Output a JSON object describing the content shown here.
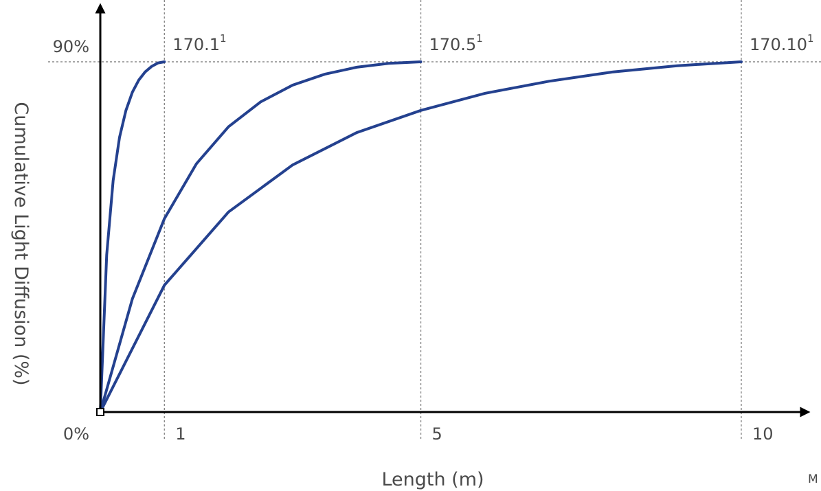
{
  "chart_data": {
    "type": "line",
    "xlabel": "Length (m)",
    "ylabel": "Cumulative Light Diffusion (%)",
    "corner_label": "M",
    "x_ticks": [
      {
        "value": 1,
        "label": "1"
      },
      {
        "value": 5,
        "label": "5"
      },
      {
        "value": 10,
        "label": "10"
      }
    ],
    "y_ticks": [
      {
        "value": 0,
        "label": "0%"
      },
      {
        "value": 90,
        "label": "90%"
      }
    ],
    "xlim": [
      0,
      11
    ],
    "ylim": [
      0,
      100
    ],
    "grid": "dotted guides at x = 1, 5, 10 and y = 90%",
    "line_color": "#24418f",
    "series": [
      {
        "label_text": "170.1",
        "label_sup": "1",
        "end_x": 1,
        "x": [
          0,
          0.1,
          0.2,
          0.3,
          0.4,
          0.5,
          0.6,
          0.7,
          0.8,
          0.9,
          1.0
        ],
        "y": [
          0,
          40.4,
          59.5,
          70.6,
          77.5,
          82.2,
          85.3,
          87.4,
          88.8,
          89.7,
          90
        ]
      },
      {
        "label_text": "170.5",
        "label_sup": "1",
        "end_x": 5,
        "x": [
          0,
          0.5,
          1.0,
          1.5,
          2.0,
          2.5,
          3.0,
          3.5,
          4.0,
          4.5,
          5.0
        ],
        "y": [
          0,
          29.1,
          49.7,
          63.8,
          73.3,
          79.7,
          84.0,
          86.8,
          88.6,
          89.6,
          90
        ]
      },
      {
        "label_text": "170.10",
        "label_sup": "1",
        "end_x": 10,
        "x": [
          0,
          1,
          2,
          3,
          4,
          5,
          6,
          7,
          8,
          9,
          10
        ],
        "y": [
          0,
          32.6,
          51.4,
          63.5,
          71.8,
          77.5,
          81.9,
          85.0,
          87.4,
          89.0,
          90
        ]
      }
    ]
  }
}
